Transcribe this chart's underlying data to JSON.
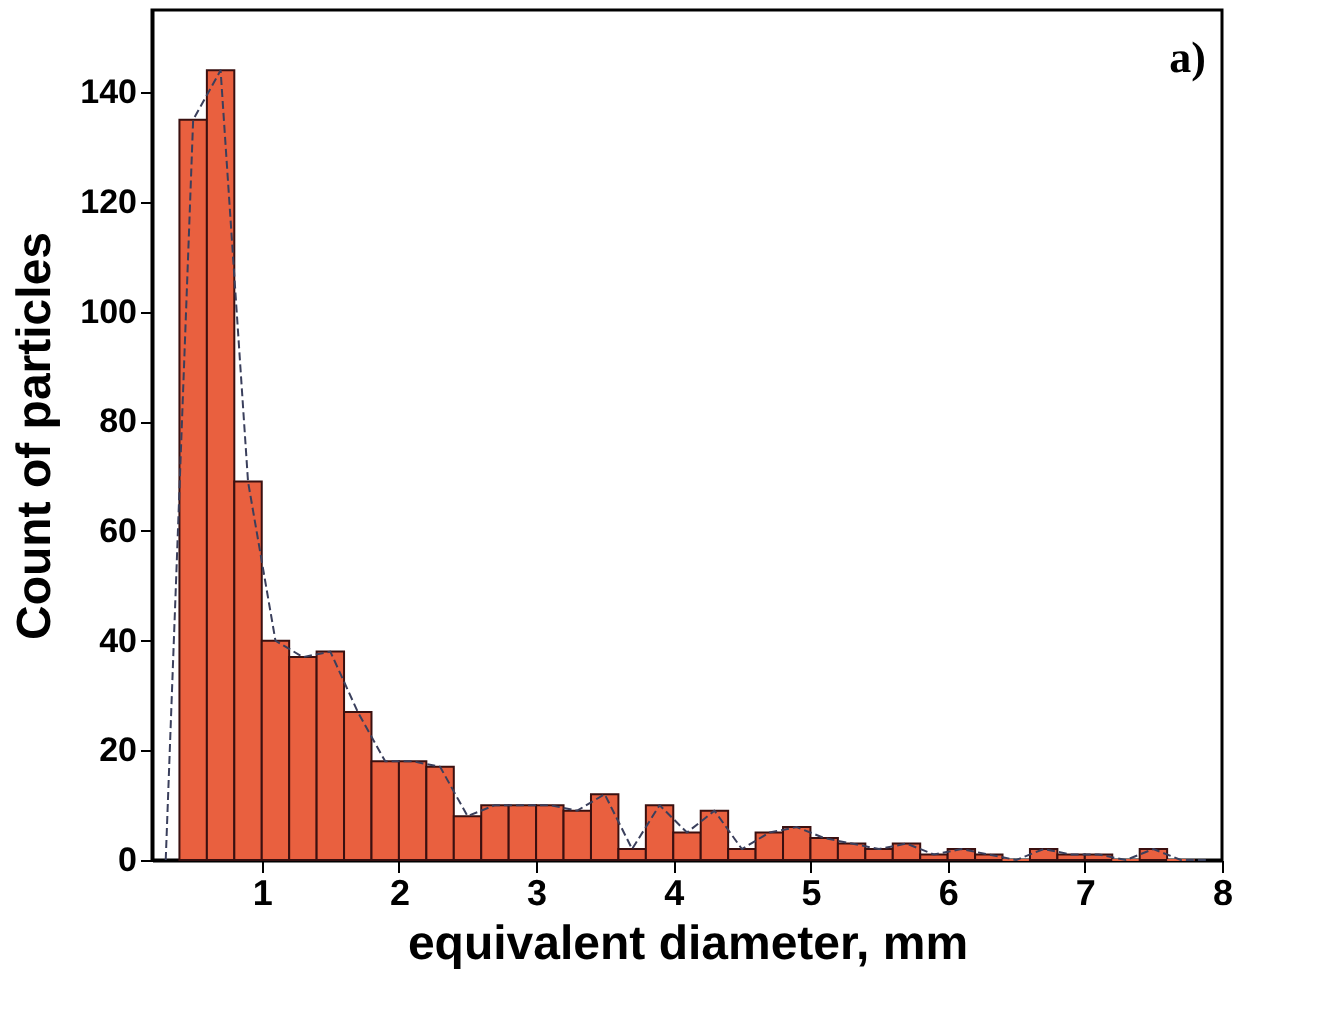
{
  "chart_data": {
    "type": "histogram",
    "xlabel": "equivalent diameter, mm",
    "ylabel": "Count of particles",
    "annotations": [
      "a)"
    ],
    "series": [
      {
        "type": "histogram",
        "color": "#e9603f",
        "bins": [
          0.4,
          0.6,
          0.8,
          1.0,
          1.2,
          1.4,
          1.6,
          1.8,
          2.0,
          2.2,
          2.4,
          2.6,
          2.8,
          3.0,
          3.2,
          3.4,
          3.6,
          3.8,
          4.0,
          4.2,
          4.4,
          4.6,
          4.8,
          5.0,
          5.2,
          5.4,
          5.6,
          5.8,
          6.0,
          6.2,
          6.4,
          6.6,
          6.8,
          7.0,
          7.2,
          7.4,
          7.6,
          7.8
        ],
        "values": [
          135,
          144,
          69,
          40,
          37,
          38,
          27,
          18,
          18,
          17,
          8,
          10,
          10,
          10,
          9,
          12,
          2,
          10,
          5,
          9,
          2,
          5,
          6,
          4,
          3,
          2,
          3,
          1,
          2,
          1,
          0,
          2,
          1,
          1,
          0,
          2,
          0
        ]
      },
      {
        "type": "line",
        "color": "#3a3f5c",
        "line_style": "dashed",
        "x": [
          0.3,
          0.5,
          0.7,
          0.9,
          1.1,
          1.3,
          1.5,
          1.7,
          1.9,
          2.1,
          2.3,
          2.5,
          2.7,
          2.9,
          3.1,
          3.3,
          3.5,
          3.7,
          3.9,
          4.1,
          4.3,
          4.5,
          4.7,
          4.9,
          5.1,
          5.3,
          5.5,
          5.7,
          5.9,
          6.1,
          6.3,
          6.5,
          6.7,
          6.9,
          7.1,
          7.3,
          7.5,
          7.7,
          7.9
        ],
        "values": [
          0,
          135,
          144,
          69,
          40,
          37,
          38,
          27,
          18,
          18,
          17,
          8,
          10,
          10,
          10,
          9,
          12,
          2,
          10,
          5,
          9,
          2,
          5,
          6,
          4,
          3,
          2,
          3,
          1,
          2,
          1,
          0,
          2,
          1,
          1,
          0,
          2,
          0,
          0
        ]
      }
    ],
    "xlim": [
      0.2,
      8
    ],
    "xticks": [
      1,
      2,
      3,
      4,
      5,
      6,
      7,
      8
    ],
    "ylim": [
      0,
      155
    ],
    "yticks": [
      0,
      20,
      40,
      60,
      80,
      100,
      120,
      140
    ],
    "grid": false
  }
}
